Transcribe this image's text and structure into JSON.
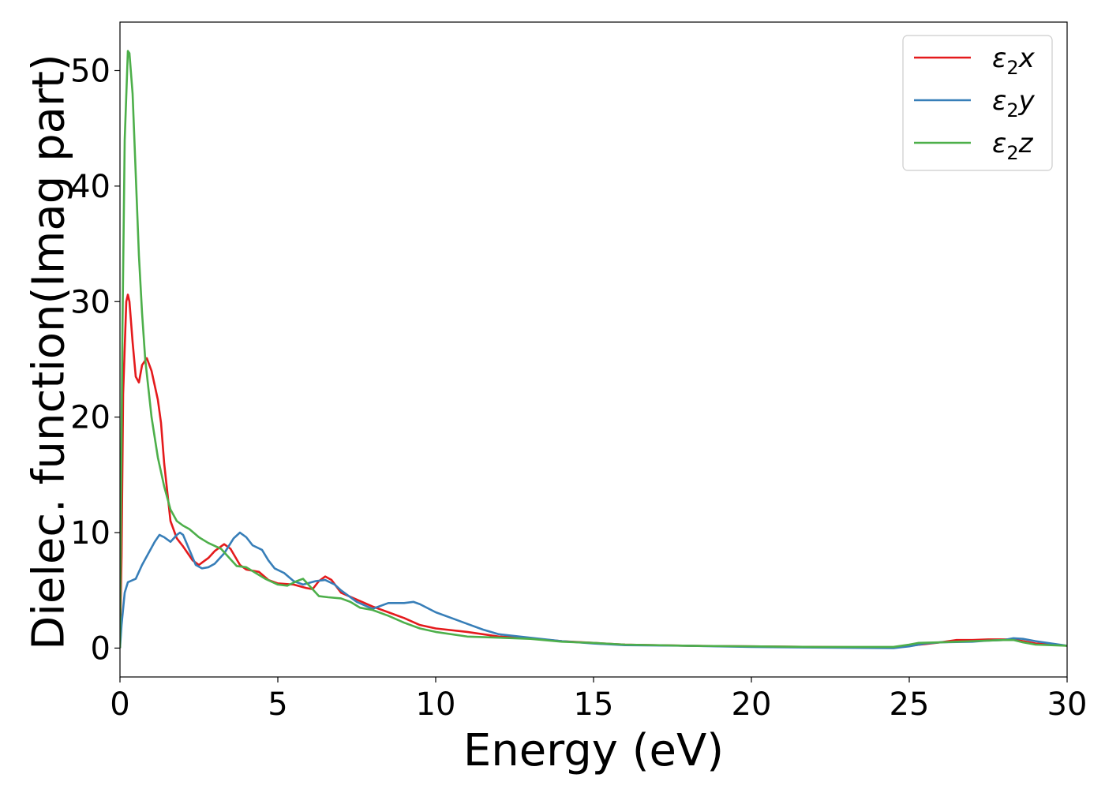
{
  "chart_data": {
    "type": "line",
    "xlabel": "Energy (eV)",
    "ylabel": "Dielec. function(Imag part)",
    "xlim": [
      0,
      30
    ],
    "ylim": [
      -2.5,
      54.2
    ],
    "x_ticks": [
      0,
      5,
      10,
      15,
      20,
      25,
      30
    ],
    "y_ticks": [
      0,
      10,
      20,
      30,
      40,
      50
    ],
    "grid": false,
    "legend_position": "top-right",
    "series": [
      {
        "name": "ε₂x",
        "legend_base": "ε",
        "legend_sub": "2",
        "legend_suffix": "x",
        "color": "#e41a1c",
        "points": [
          [
            0,
            0
          ],
          [
            0.05,
            8
          ],
          [
            0.1,
            22
          ],
          [
            0.2,
            30
          ],
          [
            0.25,
            30.6
          ],
          [
            0.3,
            30
          ],
          [
            0.4,
            26.5
          ],
          [
            0.5,
            23.5
          ],
          [
            0.6,
            23
          ],
          [
            0.7,
            24.5
          ],
          [
            0.85,
            25.1
          ],
          [
            1.0,
            24
          ],
          [
            1.2,
            21.5
          ],
          [
            1.3,
            19.5
          ],
          [
            1.4,
            16
          ],
          [
            1.6,
            11
          ],
          [
            1.8,
            9.5
          ],
          [
            2.0,
            8.8
          ],
          [
            2.3,
            7.6
          ],
          [
            2.5,
            7.2
          ],
          [
            2.8,
            7.8
          ],
          [
            3.0,
            8.4
          ],
          [
            3.3,
            9.0
          ],
          [
            3.5,
            8.6
          ],
          [
            3.8,
            7.2
          ],
          [
            4.0,
            6.8
          ],
          [
            4.4,
            6.6
          ],
          [
            4.7,
            5.9
          ],
          [
            5.0,
            5.6
          ],
          [
            5.5,
            5.5
          ],
          [
            5.9,
            5.2
          ],
          [
            6.1,
            5.1
          ],
          [
            6.3,
            5.8
          ],
          [
            6.5,
            6.2
          ],
          [
            6.7,
            5.9
          ],
          [
            7.0,
            4.8
          ],
          [
            7.5,
            4.2
          ],
          [
            8.0,
            3.6
          ],
          [
            8.5,
            3.1
          ],
          [
            9.0,
            2.6
          ],
          [
            9.5,
            2.0
          ],
          [
            10,
            1.7
          ],
          [
            11,
            1.4
          ],
          [
            12,
            1.0
          ],
          [
            13,
            0.85
          ],
          [
            14,
            0.6
          ],
          [
            15,
            0.45
          ],
          [
            16,
            0.3
          ],
          [
            18,
            0.2
          ],
          [
            20,
            0.15
          ],
          [
            22,
            0.1
          ],
          [
            24.5,
            0.05
          ],
          [
            25,
            0.2
          ],
          [
            25.5,
            0.35
          ],
          [
            26,
            0.5
          ],
          [
            26.5,
            0.7
          ],
          [
            27,
            0.7
          ],
          [
            27.5,
            0.75
          ],
          [
            28,
            0.75
          ],
          [
            28.3,
            0.75
          ],
          [
            29,
            0.4
          ],
          [
            30,
            0.2
          ]
        ]
      },
      {
        "name": "ε₂y",
        "legend_base": "ε",
        "legend_sub": "2",
        "legend_suffix": "y",
        "color": "#377eb8",
        "points": [
          [
            0,
            0
          ],
          [
            0.05,
            2
          ],
          [
            0.15,
            4.8
          ],
          [
            0.25,
            5.7
          ],
          [
            0.5,
            6.0
          ],
          [
            0.7,
            7.2
          ],
          [
            0.9,
            8.2
          ],
          [
            1.1,
            9.2
          ],
          [
            1.25,
            9.8
          ],
          [
            1.4,
            9.6
          ],
          [
            1.6,
            9.2
          ],
          [
            1.8,
            9.8
          ],
          [
            1.9,
            10.0
          ],
          [
            2.0,
            9.8
          ],
          [
            2.2,
            8.5
          ],
          [
            2.4,
            7.2
          ],
          [
            2.6,
            6.9
          ],
          [
            2.8,
            7.0
          ],
          [
            3.0,
            7.3
          ],
          [
            3.3,
            8.2
          ],
          [
            3.6,
            9.5
          ],
          [
            3.8,
            10.0
          ],
          [
            4.0,
            9.6
          ],
          [
            4.2,
            8.9
          ],
          [
            4.5,
            8.5
          ],
          [
            4.7,
            7.6
          ],
          [
            4.9,
            6.9
          ],
          [
            5.2,
            6.5
          ],
          [
            5.5,
            5.8
          ],
          [
            5.8,
            5.5
          ],
          [
            6.2,
            5.8
          ],
          [
            6.5,
            5.9
          ],
          [
            6.8,
            5.5
          ],
          [
            7.0,
            5.0
          ],
          [
            7.5,
            4.0
          ],
          [
            8.0,
            3.4
          ],
          [
            8.5,
            3.9
          ],
          [
            9.0,
            3.9
          ],
          [
            9.3,
            4.0
          ],
          [
            9.5,
            3.8
          ],
          [
            10,
            3.1
          ],
          [
            10.5,
            2.6
          ],
          [
            11,
            2.1
          ],
          [
            11.5,
            1.6
          ],
          [
            12,
            1.2
          ],
          [
            13,
            0.9
          ],
          [
            14,
            0.6
          ],
          [
            15,
            0.4
          ],
          [
            16,
            0.25
          ],
          [
            18,
            0.2
          ],
          [
            20,
            0.1
          ],
          [
            22,
            0.05
          ],
          [
            24.5,
            0.0
          ],
          [
            25,
            0.15
          ],
          [
            25.5,
            0.4
          ],
          [
            26,
            0.5
          ],
          [
            27,
            0.55
          ],
          [
            27.5,
            0.65
          ],
          [
            28,
            0.7
          ],
          [
            28.3,
            0.85
          ],
          [
            28.6,
            0.8
          ],
          [
            29,
            0.6
          ],
          [
            30,
            0.2
          ]
        ]
      },
      {
        "name": "ε₂z",
        "legend_base": "ε",
        "legend_sub": "2",
        "legend_suffix": "z",
        "color": "#4daf4a",
        "points": [
          [
            0,
            0
          ],
          [
            0.03,
            12
          ],
          [
            0.08,
            28
          ],
          [
            0.15,
            44
          ],
          [
            0.25,
            51.7
          ],
          [
            0.3,
            51.5
          ],
          [
            0.4,
            48
          ],
          [
            0.5,
            41
          ],
          [
            0.6,
            34
          ],
          [
            0.7,
            29
          ],
          [
            0.8,
            25
          ],
          [
            1.0,
            20
          ],
          [
            1.2,
            16.5
          ],
          [
            1.4,
            14
          ],
          [
            1.6,
            12
          ],
          [
            1.8,
            11
          ],
          [
            2.0,
            10.6
          ],
          [
            2.2,
            10.3
          ],
          [
            2.5,
            9.6
          ],
          [
            2.8,
            9.1
          ],
          [
            3.2,
            8.6
          ],
          [
            3.5,
            7.7
          ],
          [
            3.7,
            7.1
          ],
          [
            4.0,
            7.0
          ],
          [
            4.3,
            6.5
          ],
          [
            4.6,
            6.0
          ],
          [
            5.0,
            5.5
          ],
          [
            5.3,
            5.4
          ],
          [
            5.6,
            5.8
          ],
          [
            5.8,
            6.0
          ],
          [
            6.0,
            5.4
          ],
          [
            6.3,
            4.5
          ],
          [
            6.6,
            4.4
          ],
          [
            7.0,
            4.3
          ],
          [
            7.3,
            4.0
          ],
          [
            7.6,
            3.5
          ],
          [
            8.0,
            3.3
          ],
          [
            8.5,
            2.8
          ],
          [
            9.0,
            2.2
          ],
          [
            9.5,
            1.7
          ],
          [
            10,
            1.4
          ],
          [
            11,
            1.0
          ],
          [
            12,
            0.9
          ],
          [
            13,
            0.8
          ],
          [
            14,
            0.55
          ],
          [
            15,
            0.45
          ],
          [
            16,
            0.3
          ],
          [
            18,
            0.2
          ],
          [
            20,
            0.15
          ],
          [
            22,
            0.1
          ],
          [
            24.5,
            0.1
          ],
          [
            25,
            0.3
          ],
          [
            25.3,
            0.45
          ],
          [
            26,
            0.5
          ],
          [
            27,
            0.6
          ],
          [
            28,
            0.7
          ],
          [
            28.3,
            0.7
          ],
          [
            28.6,
            0.5
          ],
          [
            29,
            0.3
          ],
          [
            30,
            0.2
          ]
        ]
      }
    ]
  }
}
